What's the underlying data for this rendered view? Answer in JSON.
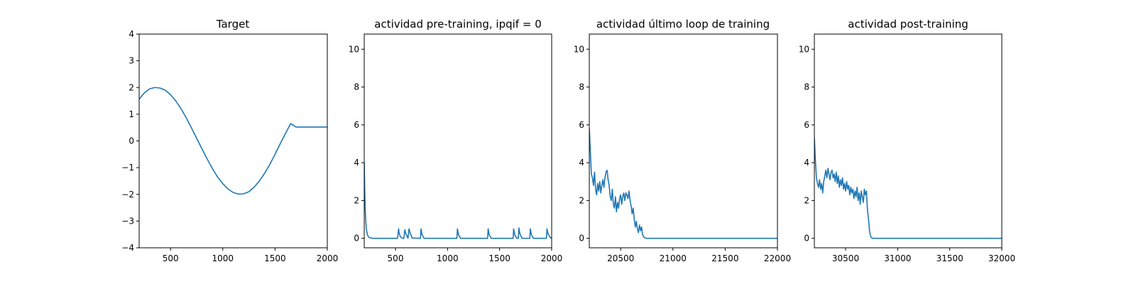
{
  "chart_data": [
    {
      "type": "line",
      "title": "Target",
      "xlabel": "",
      "ylabel": "",
      "xlim": [
        200,
        2000
      ],
      "ylim": [
        -4,
        4
      ],
      "xticks": [
        500,
        1000,
        1500,
        2000
      ],
      "yticks": [
        -4,
        -3,
        -2,
        -1,
        0,
        1,
        2,
        3,
        4
      ],
      "grid": false,
      "series": [
        {
          "color": "#1f77b4",
          "x": [
            200,
            250,
            300,
            350,
            400,
            450,
            500,
            550,
            600,
            650,
            700,
            750,
            800,
            850,
            900,
            950,
            1000,
            1050,
            1100,
            1150,
            1200,
            1250,
            1300,
            1350,
            1400,
            1450,
            1500,
            1550,
            1600,
            1650,
            1700,
            1750,
            1800,
            1850,
            1900,
            1950,
            2000
          ],
          "y": [
            1.56,
            1.8,
            1.95,
            2.0,
            1.98,
            1.9,
            1.73,
            1.5,
            1.21,
            0.87,
            0.49,
            0.1,
            -0.29,
            -0.67,
            -1.03,
            -1.35,
            -1.6,
            -1.8,
            -1.93,
            -1.99,
            -1.98,
            -1.9,
            -1.73,
            -1.5,
            -1.21,
            -0.88,
            -0.5,
            -0.1,
            0.28,
            0.65,
            0.52,
            0.52,
            0.52,
            0.52,
            0.52,
            0.52,
            0.52
          ]
        }
      ]
    },
    {
      "type": "line",
      "title": "actividad pre-training, ipqif = 0",
      "xlabel": "",
      "ylabel": "",
      "xlim": [
        200,
        2000
      ],
      "ylim": [
        -0.5,
        10.8
      ],
      "xticks": [
        500,
        1000,
        1500,
        2000
      ],
      "yticks": [
        0,
        2,
        4,
        6,
        8,
        10
      ],
      "grid": false,
      "series": [
        {
          "color": "#1f77b4",
          "x": [
            200,
            205,
            210,
            215,
            220,
            230,
            240,
            260,
            280,
            300,
            520,
            530,
            535,
            545,
            560,
            570,
            580,
            590,
            600,
            620,
            630,
            640,
            660,
            740,
            745,
            755,
            775,
            1090,
            1095,
            1105,
            1125,
            1385,
            1390,
            1400,
            1420,
            1630,
            1635,
            1645,
            1665,
            1680,
            1685,
            1695,
            1715,
            1790,
            1795,
            1805,
            1825,
            1950,
            1955,
            1965,
            1985,
            2000
          ],
          "y": [
            4.0,
            2.5,
            1.5,
            0.9,
            0.5,
            0.2,
            0.08,
            0.02,
            0.0,
            0.0,
            0.0,
            0.5,
            0.3,
            0.1,
            0.02,
            0.0,
            0.0,
            0.45,
            0.25,
            0.0,
            0.5,
            0.3,
            0.02,
            0.0,
            0.5,
            0.2,
            0.0,
            0.0,
            0.5,
            0.2,
            0.0,
            0.0,
            0.5,
            0.2,
            0.0,
            0.0,
            0.5,
            0.2,
            0.0,
            0.0,
            0.55,
            0.25,
            0.0,
            0.0,
            0.5,
            0.2,
            0.0,
            0.0,
            0.5,
            0.25,
            0.05,
            0.0
          ]
        }
      ]
    },
    {
      "type": "line",
      "title": "actividad último loop de training",
      "xlabel": "",
      "ylabel": "",
      "xlim": [
        20200,
        22000
      ],
      "ylim": [
        -0.5,
        10.8
      ],
      "xticks": [
        20500,
        21000,
        21500,
        22000
      ],
      "yticks": [
        0,
        2,
        4,
        6,
        8,
        10
      ],
      "grid": false,
      "series": [
        {
          "color": "#1f77b4",
          "x": [
            20200,
            20210,
            20220,
            20230,
            20240,
            20250,
            20260,
            20270,
            20280,
            20290,
            20300,
            20310,
            20320,
            20330,
            20340,
            20350,
            20360,
            20370,
            20380,
            20390,
            20400,
            20410,
            20420,
            20430,
            20440,
            20450,
            20460,
            20470,
            20480,
            20490,
            20500,
            20510,
            20520,
            20530,
            20540,
            20550,
            20560,
            20570,
            20580,
            20590,
            20600,
            20610,
            20620,
            20630,
            20640,
            20650,
            20660,
            20670,
            20680,
            20690,
            20700,
            20710,
            20720,
            20730,
            20740,
            20750,
            20760,
            20770,
            20780,
            20790,
            20800,
            20810,
            20820,
            20830,
            20840,
            20850,
            20860,
            20870,
            20880,
            20890,
            20900,
            20920,
            20950,
            21000,
            22000
          ],
          "y": [
            5.8,
            4.6,
            3.4,
            3.2,
            2.8,
            3.5,
            2.6,
            2.3,
            2.9,
            2.5,
            3.0,
            2.4,
            2.8,
            3.1,
            2.7,
            3.2,
            3.5,
            3.6,
            3.1,
            2.8,
            2.2,
            2.0,
            2.6,
            1.8,
            1.6,
            2.2,
            1.4,
            1.9,
            1.6,
            2.1,
            2.3,
            1.8,
            2.2,
            2.4,
            2.0,
            2.4,
            2.3,
            2.1,
            2.5,
            2.0,
            1.7,
            1.3,
            1.6,
            1.0,
            0.6,
            0.9,
            0.5,
            0.3,
            0.7,
            0.4,
            0.6,
            0.2,
            0.08,
            0.03,
            0.01,
            0.0,
            0.0,
            0.0,
            0.0,
            0.0,
            0.0,
            0.0,
            0.0,
            0.0,
            0.0,
            0.0,
            0.0,
            0.0,
            0.0,
            0.0,
            0.0,
            0.0,
            0.0,
            0.0,
            0.0
          ]
        }
      ]
    },
    {
      "type": "line",
      "title": "actividad post-training",
      "xlabel": "",
      "ylabel": "",
      "xlim": [
        30200,
        32000
      ],
      "ylim": [
        -0.5,
        10.8
      ],
      "xticks": [
        30500,
        31000,
        31500,
        32000
      ],
      "yticks": [
        0,
        2,
        4,
        6,
        8,
        10
      ],
      "grid": false,
      "series": [
        {
          "color": "#1f77b4",
          "x": [
            30200,
            30210,
            30220,
            30230,
            30240,
            30250,
            30260,
            30270,
            30280,
            30290,
            30300,
            30310,
            30320,
            30330,
            30340,
            30350,
            30360,
            30370,
            30380,
            30390,
            30400,
            30410,
            30420,
            30430,
            30440,
            30450,
            30460,
            30470,
            30480,
            30490,
            30500,
            30510,
            30520,
            30530,
            30540,
            30550,
            30560,
            30570,
            30580,
            30590,
            30600,
            30610,
            30620,
            30630,
            30640,
            30650,
            30660,
            30670,
            30680,
            30690,
            30700,
            30710,
            30720,
            30730,
            30740,
            30750,
            30760,
            30780,
            30800,
            31000,
            32000
          ],
          "y": [
            5.3,
            4.1,
            3.2,
            2.9,
            2.7,
            3.1,
            2.6,
            2.9,
            2.4,
            3.0,
            3.3,
            3.6,
            3.2,
            3.7,
            3.4,
            3.1,
            3.5,
            3.6,
            3.2,
            3.4,
            3.0,
            3.5,
            2.9,
            3.3,
            2.7,
            3.1,
            2.8,
            3.2,
            2.6,
            2.9,
            2.5,
            3.0,
            2.6,
            2.8,
            2.3,
            2.7,
            2.4,
            2.6,
            2.1,
            2.5,
            2.2,
            2.7,
            2.0,
            2.4,
            1.8,
            2.5,
            2.2,
            1.9,
            2.6,
            2.3,
            2.5,
            1.5,
            1.0,
            0.4,
            0.1,
            0.03,
            0.0,
            0.0,
            0.0,
            0.0,
            0.0
          ]
        }
      ]
    }
  ]
}
